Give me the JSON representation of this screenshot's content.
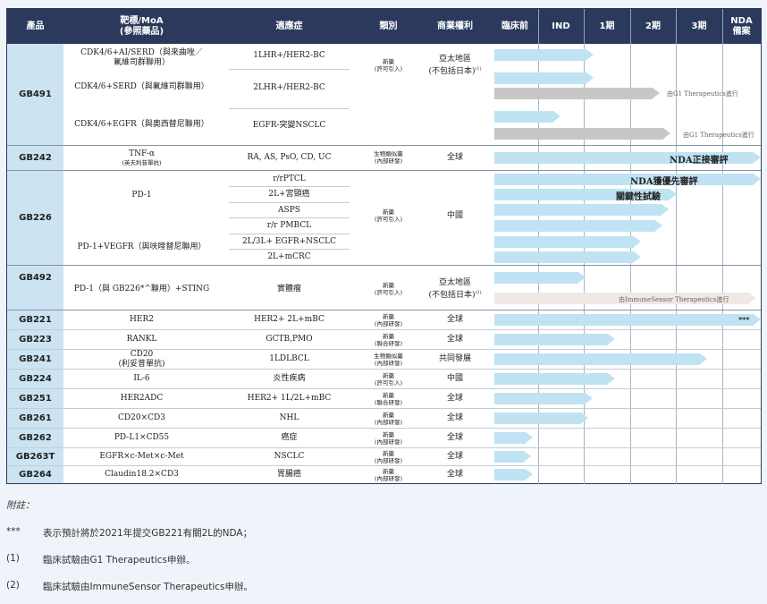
{
  "header": {
    "product": "產品",
    "target_line1": "靶標/MoA",
    "target_line2": "(參照藥品)",
    "indication": "適應症",
    "category": "類別",
    "rights": "商業權利",
    "preclinical": "臨床前",
    "ind": "IND",
    "phase1": "1期",
    "phase2": "2期",
    "phase3": "3期",
    "nda_line1": "NDA",
    "nda_line2": "備案"
  },
  "colors": {
    "header_bg": "#2b3a5c",
    "product_bg": "#cbe3f2",
    "bar_blue": "#bfe3f3",
    "bar_gray": "#c7c7c7"
  },
  "rows": {
    "gb491": {
      "product": "GB491",
      "target1a": "CDK4/6+AI/SERD（與來曲唑／",
      "target1b": "氟維司群聯用）",
      "target2": "CDK4/6+SERD（與氟維司群聯用）",
      "target3": "CDK4/6+EGFR（與奧西替尼聯用）",
      "ind1": "1LHR+/HER2-BC",
      "ind2": "2LHR+/HER2-BC",
      "ind3": "EGFR-突變NSCLC",
      "cat1": "新藥",
      "cat2": "(許可引入)",
      "rights1": "亞太地區",
      "rights2": "(不包括日本)",
      "rights_note": "(1)",
      "partner_a": "由G1 Therapeutics進行",
      "partner_b": "由G1 Therapeutics進行"
    },
    "gb242": {
      "product": "GB242",
      "target1": "TNF-α",
      "target2": "(英夫利昔單抗)",
      "ind": "RA, AS, PsO, CD, UC",
      "cat1": "生物類似藥",
      "cat2": "(內部研發)",
      "rights": "全球",
      "bar_label": "NDA正接審評"
    },
    "gb226": {
      "product": "GB226",
      "target1": "PD-1",
      "target2": "PD-1+VEGFR（與呋喹替尼聯用）",
      "ind1": "r/rPTCL",
      "ind2": "2L+宮頸癌",
      "ind3": "ASPS",
      "ind4": "r/r PMBCL",
      "ind5": "2L/3L+ EGFR+NSCLC",
      "ind6": "2L+mCRC",
      "cat1": "新藥",
      "cat2": "(許可引入)",
      "rights": "中國",
      "bar_label1": "NDA獲優先審評",
      "bar_label2": "關鍵性試驗"
    },
    "gb492": {
      "product": "GB492",
      "target": "PD-1（與 GB226*^聯用）+STING",
      "ind": "實體瘤",
      "cat1": "新藥",
      "cat2": "(許可引入)",
      "rights1": "亞太地區",
      "rights2": "(不包括日本)",
      "rights_note": "(2)",
      "partner": "由ImmuneSensor Therapeutics進行"
    },
    "gb221": {
      "product": "GB221",
      "target": "HER2",
      "ind": "HER2+ 2L+mBC",
      "cat1": "新藥",
      "cat2": "(內部研發)",
      "rights": "全球",
      "marker": "***"
    },
    "gb223": {
      "product": "GB223",
      "target": "RANKL",
      "ind": "GCTB,PMO",
      "cat1": "新藥",
      "cat2": "(聯合研發)",
      "rights": "全球"
    },
    "gb241": {
      "product": "GB241",
      "target1": "CD20",
      "target2": "(利妥昔單抗)",
      "ind": "1LDLBCL",
      "cat1": "生物類似藥",
      "cat2": "(內部研發)",
      "rights": "共同發展"
    },
    "gb224": {
      "product": "GB224",
      "target": "IL-6",
      "ind": "炎性疾病",
      "cat1": "新藥",
      "cat2": "(許可引入)",
      "rights": "中國"
    },
    "gb251": {
      "product": "GB251",
      "target": "HER2ADC",
      "ind": "HER2+ 1L/2L+mBC",
      "cat1": "新藥",
      "cat2": "(聯合研發)",
      "rights": "全球"
    },
    "gb261": {
      "product": "GB261",
      "target": "CD20×CD3",
      "ind": "NHL",
      "cat1": "新藥",
      "cat2": "(內部研發)",
      "rights": "全球"
    },
    "gb262": {
      "product": "GB262",
      "target": "PD-L1×CD55",
      "ind": "癌症",
      "cat1": "新藥",
      "cat2": "(內部研發)",
      "rights": "全球"
    },
    "gb263t": {
      "product": "GB263T",
      "target": "EGFR×c-Met×c-Met",
      "ind": "NSCLC",
      "cat1": "新藥",
      "cat2": "(內部研發)",
      "rights": "全球"
    },
    "gb264": {
      "product": "GB264",
      "target": "Claudin18.2×CD3",
      "ind": "胃腸癌",
      "cat1": "新藥",
      "cat2": "(內部研發)",
      "rights": "全球"
    }
  },
  "notes": {
    "title": "附註：",
    "n1_mark": "***",
    "n1_text": "表示預計將於2021年提交GB221有關2L的NDA；",
    "n2_mark": "(1)",
    "n2_text": "臨床試驗由G1 Therapeutics申辦。",
    "n3_mark": "(2)",
    "n3_text": "臨床試驗由ImmuneSensor Therapeutics申辦。"
  }
}
